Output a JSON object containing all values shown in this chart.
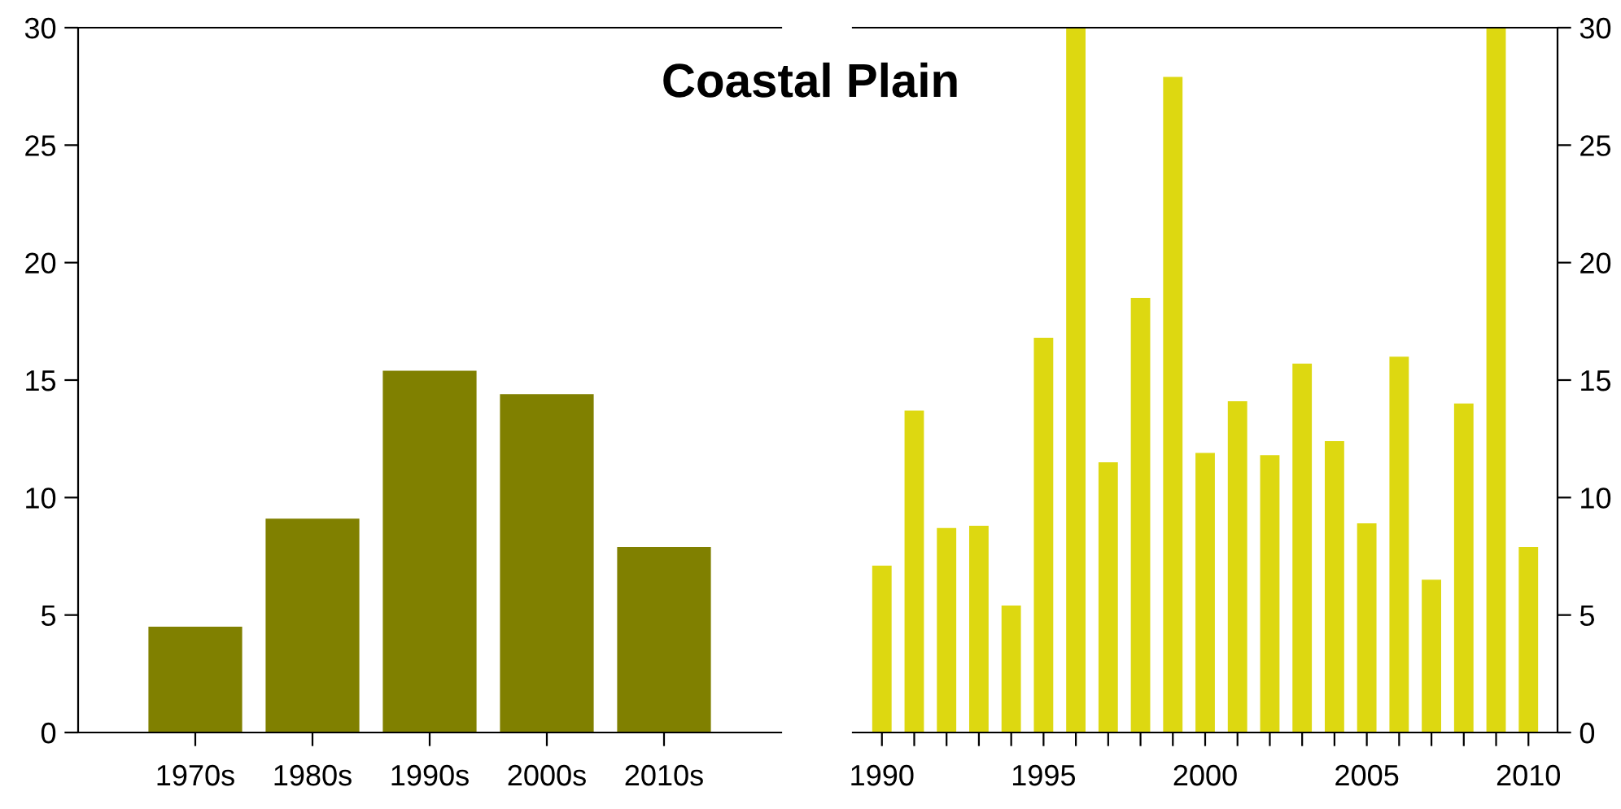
{
  "chart_data": [
    {
      "type": "bar",
      "title": "Coastal Plain",
      "categories": [
        "1970s",
        "1980s",
        "1990s",
        "2000s",
        "2010s"
      ],
      "values": [
        4.5,
        9.1,
        15.4,
        14.4,
        7.9
      ],
      "color": "#808000",
      "ylim": [
        0,
        30
      ],
      "yticks": [
        0,
        5,
        10,
        15,
        20,
        25,
        30
      ],
      "grid": false,
      "legend": false
    },
    {
      "type": "bar",
      "x": [
        1990,
        1991,
        1992,
        1993,
        1994,
        1995,
        1996,
        1997,
        1998,
        1999,
        2000,
        2001,
        2002,
        2003,
        2004,
        2005,
        2006,
        2007,
        2008,
        2009,
        2010
      ],
      "values": [
        7.1,
        13.7,
        8.7,
        8.8,
        5.4,
        16.8,
        30,
        11.5,
        18.5,
        27.9,
        11.9,
        14.1,
        11.8,
        15.7,
        12.4,
        8.9,
        16.0,
        6.5,
        14.0,
        30,
        7.9
      ],
      "color": "#ddd811",
      "xlim": [
        1989.1,
        2010.9
      ],
      "xticks": [
        1990,
        {
          "value": 1991,
          "label": null
        },
        {
          "value": 1992,
          "label": null
        },
        {
          "value": 1993,
          "label": null
        },
        {
          "value": 1994,
          "label": null
        },
        1995,
        {
          "value": 1996,
          "label": null
        },
        {
          "value": 1997,
          "label": null
        },
        {
          "value": 1998,
          "label": null
        },
        {
          "value": 1999,
          "label": null
        },
        2000,
        {
          "value": 2001,
          "label": null
        },
        {
          "value": 2002,
          "label": null
        },
        {
          "value": 2003,
          "label": null
        },
        {
          "value": 2004,
          "label": null
        },
        2005,
        {
          "value": 2006,
          "label": null
        },
        {
          "value": 2007,
          "label": null
        },
        {
          "value": 2008,
          "label": null
        },
        {
          "value": 2009,
          "label": null
        },
        2010
      ],
      "ylim": [
        0,
        30
      ],
      "yticks": [
        0,
        5,
        10,
        15,
        20,
        25,
        30
      ],
      "grid": false,
      "legend": false
    }
  ]
}
